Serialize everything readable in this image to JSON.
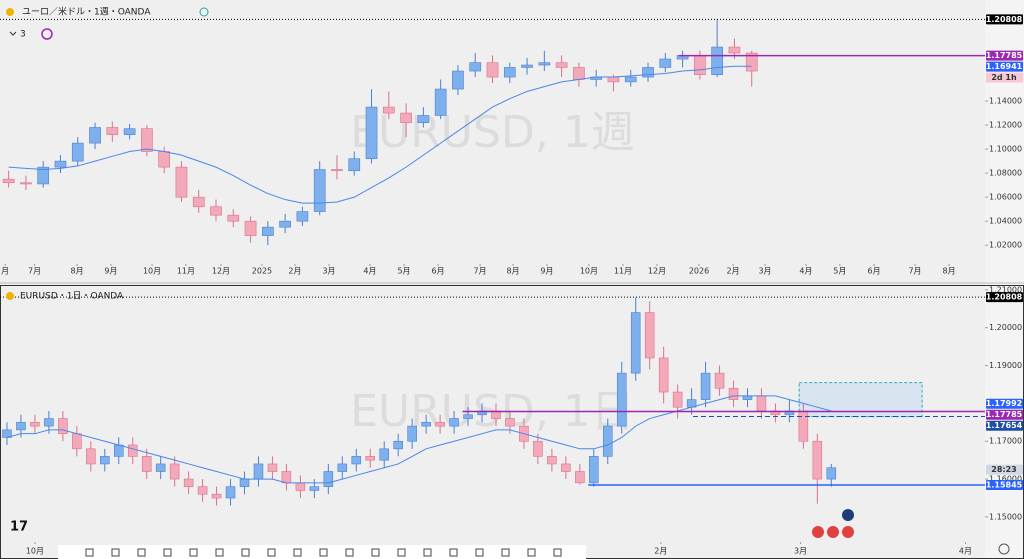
{
  "chart_data": [
    {
      "type": "candlestick",
      "title": "ユーロ／米ドル・1週・OANDA",
      "indicator_count": 3,
      "watermark": "EURUSD, 1週",
      "up_color": "#7fb0ee",
      "down_color": "#f4a9bb",
      "ma_color": "#4a86e8",
      "ylim": [
        1.006,
        1.2175
      ],
      "xlim": [
        0,
        57
      ],
      "yticks": [
        {
          "value": 1.02,
          "label": "1.02000"
        },
        {
          "value": 1.04,
          "label": "1.04000"
        },
        {
          "value": 1.06,
          "label": "1.06000"
        },
        {
          "value": 1.08,
          "label": "1.08000"
        },
        {
          "value": 1.1,
          "label": "1.10000"
        },
        {
          "value": 1.12,
          "label": "1.12000"
        },
        {
          "value": 1.14,
          "label": "1.14000"
        }
      ],
      "xticks": [
        {
          "value": 0.3,
          "label": "月"
        },
        {
          "value": 2.0,
          "label": "7月"
        },
        {
          "value": 4.46,
          "label": "8月"
        },
        {
          "value": 6.42,
          "label": "9月"
        },
        {
          "value": 8.8,
          "label": "10月"
        },
        {
          "value": 10.76,
          "label": "11月"
        },
        {
          "value": 12.79,
          "label": "12月"
        },
        {
          "value": 15.16,
          "label": "2025"
        },
        {
          "value": 17.07,
          "label": "2月"
        },
        {
          "value": 19.04,
          "label": "3月"
        },
        {
          "value": 21.41,
          "label": "4月"
        },
        {
          "value": 23.38,
          "label": "5月"
        },
        {
          "value": 25.35,
          "label": "6月"
        },
        {
          "value": 27.78,
          "label": "7月"
        },
        {
          "value": 29.69,
          "label": "8月"
        },
        {
          "value": 31.65,
          "label": "9月"
        },
        {
          "value": 34.08,
          "label": "10月"
        },
        {
          "value": 36.05,
          "label": "11月"
        },
        {
          "value": 38.02,
          "label": "12月"
        },
        {
          "value": 40.45,
          "label": "2026"
        },
        {
          "value": 42.42,
          "label": "2月"
        },
        {
          "value": 44.27,
          "label": "3月"
        },
        {
          "value": 46.64,
          "label": "4月"
        },
        {
          "value": 48.6,
          "label": "5月"
        },
        {
          "value": 50.58,
          "label": "6月"
        },
        {
          "value": 52.95,
          "label": "7月"
        },
        {
          "value": 54.92,
          "label": "8月"
        }
      ],
      "ohlc": [
        [
          1.075,
          1.082,
          1.068,
          1.072
        ],
        [
          1.072,
          1.078,
          1.066,
          1.071
        ],
        [
          1.071,
          1.09,
          1.068,
          1.085
        ],
        [
          1.085,
          1.095,
          1.08,
          1.09
        ],
        [
          1.09,
          1.11,
          1.086,
          1.105
        ],
        [
          1.105,
          1.122,
          1.1,
          1.118
        ],
        [
          1.118,
          1.123,
          1.106,
          1.112
        ],
        [
          1.112,
          1.121,
          1.108,
          1.117
        ],
        [
          1.117,
          1.12,
          1.094,
          1.098
        ],
        [
          1.098,
          1.102,
          1.08,
          1.085
        ],
        [
          1.085,
          1.09,
          1.056,
          1.06
        ],
        [
          1.06,
          1.066,
          1.047,
          1.052
        ],
        [
          1.052,
          1.058,
          1.04,
          1.045
        ],
        [
          1.045,
          1.05,
          1.035,
          1.04
        ],
        [
          1.04,
          1.044,
          1.022,
          1.028
        ],
        [
          1.028,
          1.04,
          1.02,
          1.035
        ],
        [
          1.035,
          1.046,
          1.03,
          1.04
        ],
        [
          1.04,
          1.052,
          1.036,
          1.048
        ],
        [
          1.048,
          1.09,
          1.045,
          1.083
        ],
        [
          1.083,
          1.095,
          1.075,
          1.082
        ],
        [
          1.082,
          1.098,
          1.078,
          1.092
        ],
        [
          1.092,
          1.15,
          1.088,
          1.135
        ],
        [
          1.135,
          1.148,
          1.125,
          1.13
        ],
        [
          1.13,
          1.138,
          1.11,
          1.122
        ],
        [
          1.122,
          1.135,
          1.118,
          1.128
        ],
        [
          1.128,
          1.158,
          1.125,
          1.15
        ],
        [
          1.15,
          1.17,
          1.145,
          1.165
        ],
        [
          1.165,
          1.18,
          1.16,
          1.172
        ],
        [
          1.172,
          1.178,
          1.155,
          1.16
        ],
        [
          1.16,
          1.172,
          1.155,
          1.168
        ],
        [
          1.168,
          1.176,
          1.162,
          1.17
        ],
        [
          1.17,
          1.182,
          1.165,
          1.172
        ],
        [
          1.172,
          1.178,
          1.16,
          1.168
        ],
        [
          1.168,
          1.172,
          1.152,
          1.158
        ],
        [
          1.158,
          1.166,
          1.152,
          1.16
        ],
        [
          1.16,
          1.162,
          1.148,
          1.156
        ],
        [
          1.156,
          1.166,
          1.152,
          1.16
        ],
        [
          1.16,
          1.172,
          1.156,
          1.168
        ],
        [
          1.168,
          1.18,
          1.164,
          1.175
        ],
        [
          1.175,
          1.182,
          1.168,
          1.178
        ],
        [
          1.178,
          1.182,
          1.158,
          1.162
        ],
        [
          1.162,
          1.208,
          1.16,
          1.185
        ],
        [
          1.185,
          1.192,
          1.175,
          1.18
        ],
        [
          1.18,
          1.182,
          1.152,
          1.165
        ]
      ],
      "ma_values": [
        1.085,
        1.084,
        1.083,
        1.084,
        1.086,
        1.09,
        1.094,
        1.098,
        1.1,
        1.098,
        1.095,
        1.09,
        1.085,
        1.078,
        1.07,
        1.063,
        1.058,
        1.055,
        1.055,
        1.056,
        1.06,
        1.068,
        1.076,
        1.085,
        1.095,
        1.105,
        1.115,
        1.125,
        1.135,
        1.142,
        1.148,
        1.152,
        1.156,
        1.158,
        1.16,
        1.16,
        1.161,
        1.162,
        1.163,
        1.165,
        1.166,
        1.168,
        1.169,
        1.169
      ],
      "price_lines": [
        {
          "value": 1.20808,
          "color": "#000000",
          "line": "dotted",
          "x0": 0
        },
        {
          "value": 1.17785,
          "color": "#9c27b0",
          "line": "solid",
          "x0": 39.3
        },
        {
          "value": 1.16941,
          "color": "#2962ff",
          "line": "none",
          "x0": 0
        },
        {
          "value": 1.1605,
          "label": "2d 1h",
          "color": "#f8c9d3",
          "text_color": "#333333",
          "line": "none",
          "x0": 0
        }
      ]
    },
    {
      "type": "candlestick",
      "title": "EURUSD・1日・OANDA",
      "watermark": "EURUSD, 1日",
      "up_color": "#7fb0ee",
      "down_color": "#f4a9bb",
      "ma_color": "#4a86e8",
      "ylim": [
        1.1439,
        1.2105
      ],
      "xlim": [
        0,
        70.5
      ],
      "yticks": [
        {
          "value": 1.15,
          "label": "1.15000"
        },
        {
          "value": 1.16,
          "label": "1.16000"
        },
        {
          "value": 1.17,
          "label": "1.17000"
        },
        {
          "value": 1.19,
          "label": "1.19000"
        },
        {
          "value": 1.2,
          "label": "1.20000"
        },
        {
          "value": 1.21,
          "label": "1.21000"
        }
      ],
      "xticks": [
        {
          "value": 2.5,
          "label": "10月"
        },
        {
          "value": 47.3,
          "label": "2月"
        },
        {
          "value": 57.3,
          "label": "3月"
        },
        {
          "value": 69.1,
          "label": "4月"
        }
      ],
      "ohlc": [
        [
          1.171,
          1.175,
          1.169,
          1.173
        ],
        [
          1.173,
          1.177,
          1.171,
          1.175
        ],
        [
          1.175,
          1.177,
          1.172,
          1.174
        ],
        [
          1.174,
          1.178,
          1.172,
          1.176
        ],
        [
          1.176,
          1.178,
          1.17,
          1.172
        ],
        [
          1.172,
          1.174,
          1.166,
          1.168
        ],
        [
          1.168,
          1.17,
          1.162,
          1.164
        ],
        [
          1.164,
          1.168,
          1.162,
          1.166
        ],
        [
          1.166,
          1.171,
          1.164,
          1.169
        ],
        [
          1.169,
          1.171,
          1.164,
          1.166
        ],
        [
          1.166,
          1.168,
          1.16,
          1.162
        ],
        [
          1.162,
          1.166,
          1.16,
          1.164
        ],
        [
          1.164,
          1.166,
          1.158,
          1.16
        ],
        [
          1.16,
          1.162,
          1.156,
          1.158
        ],
        [
          1.158,
          1.16,
          1.154,
          1.156
        ],
        [
          1.156,
          1.158,
          1.153,
          1.155
        ],
        [
          1.155,
          1.16,
          1.153,
          1.158
        ],
        [
          1.158,
          1.162,
          1.156,
          1.16
        ],
        [
          1.16,
          1.166,
          1.158,
          1.164
        ],
        [
          1.164,
          1.166,
          1.16,
          1.162
        ],
        [
          1.162,
          1.164,
          1.157,
          1.159
        ],
        [
          1.159,
          1.161,
          1.155,
          1.157
        ],
        [
          1.157,
          1.16,
          1.155,
          1.158
        ],
        [
          1.158,
          1.164,
          1.156,
          1.162
        ],
        [
          1.162,
          1.166,
          1.16,
          1.164
        ],
        [
          1.164,
          1.168,
          1.162,
          1.166
        ],
        [
          1.166,
          1.168,
          1.163,
          1.165
        ],
        [
          1.165,
          1.17,
          1.163,
          1.168
        ],
        [
          1.168,
          1.172,
          1.166,
          1.17
        ],
        [
          1.17,
          1.176,
          1.168,
          1.174
        ],
        [
          1.174,
          1.177,
          1.172,
          1.175
        ],
        [
          1.175,
          1.177,
          1.172,
          1.174
        ],
        [
          1.174,
          1.178,
          1.172,
          1.176
        ],
        [
          1.176,
          1.179,
          1.174,
          1.177
        ],
        [
          1.177,
          1.18,
          1.175,
          1.178
        ],
        [
          1.178,
          1.18,
          1.174,
          1.176
        ],
        [
          1.176,
          1.178,
          1.172,
          1.174
        ],
        [
          1.174,
          1.176,
          1.168,
          1.17
        ],
        [
          1.17,
          1.172,
          1.164,
          1.166
        ],
        [
          1.166,
          1.168,
          1.162,
          1.164
        ],
        [
          1.164,
          1.166,
          1.16,
          1.162
        ],
        [
          1.162,
          1.164,
          1.1585,
          1.159
        ],
        [
          1.159,
          1.168,
          1.158,
          1.166
        ],
        [
          1.166,
          1.176,
          1.164,
          1.174
        ],
        [
          1.174,
          1.191,
          1.172,
          1.188
        ],
        [
          1.188,
          1.208,
          1.186,
          1.204
        ],
        [
          1.204,
          1.207,
          1.189,
          1.192
        ],
        [
          1.192,
          1.195,
          1.18,
          1.183
        ],
        [
          1.183,
          1.185,
          1.176,
          1.179
        ],
        [
          1.179,
          1.184,
          1.177,
          1.181
        ],
        [
          1.181,
          1.191,
          1.179,
          1.188
        ],
        [
          1.188,
          1.19,
          1.182,
          1.184
        ],
        [
          1.184,
          1.186,
          1.179,
          1.181
        ],
        [
          1.181,
          1.184,
          1.179,
          1.182
        ],
        [
          1.182,
          1.184,
          1.176,
          1.178
        ],
        [
          1.178,
          1.18,
          1.175,
          1.177
        ],
        [
          1.177,
          1.181,
          1.175,
          1.178
        ],
        [
          1.178,
          1.18,
          1.168,
          1.17
        ],
        [
          1.17,
          1.172,
          1.1535,
          1.16
        ],
        [
          1.16,
          1.164,
          1.158,
          1.163
        ]
      ],
      "ma_values": [
        1.171,
        1.172,
        1.172,
        1.173,
        1.173,
        1.172,
        1.171,
        1.17,
        1.169,
        1.168,
        1.167,
        1.166,
        1.165,
        1.164,
        1.163,
        1.162,
        1.161,
        1.16,
        1.16,
        1.16,
        1.159,
        1.159,
        1.159,
        1.159,
        1.16,
        1.161,
        1.162,
        1.163,
        1.164,
        1.166,
        1.168,
        1.169,
        1.17,
        1.171,
        1.172,
        1.173,
        1.173,
        1.172,
        1.171,
        1.17,
        1.169,
        1.168,
        1.168,
        1.169,
        1.171,
        1.174,
        1.176,
        1.177,
        1.178,
        1.179,
        1.18,
        1.181,
        1.182,
        1.182,
        1.182,
        1.182,
        1.181,
        1.18,
        1.179,
        1.178
      ],
      "zone": {
        "y": [
          1.1765,
          1.1855
        ],
        "x": [
          57.2,
          66
        ],
        "color": "#c8dcf0"
      },
      "price_lines": [
        {
          "value": 1.20808,
          "color": "#000000",
          "line": "dotted",
          "x0": 0
        },
        {
          "value": 1.17992,
          "color": "#2962ff",
          "line": "none",
          "x0": 0
        },
        {
          "value": 1.17785,
          "color": "#9c27b0",
          "line": "solid",
          "x0": 33.1
        },
        {
          "value": 1.17654,
          "color": "#1e4fa8",
          "line": "dashed",
          "x0": 49.6
        },
        {
          "value": 1.1625,
          "label": "28:23",
          "color": "#cfd8e3",
          "text_color": "#333333",
          "line": "none",
          "x0": 0
        },
        {
          "value": 1.15845,
          "color": "#2962ff",
          "line": "solid",
          "x0": 42.1
        }
      ]
    }
  ]
}
